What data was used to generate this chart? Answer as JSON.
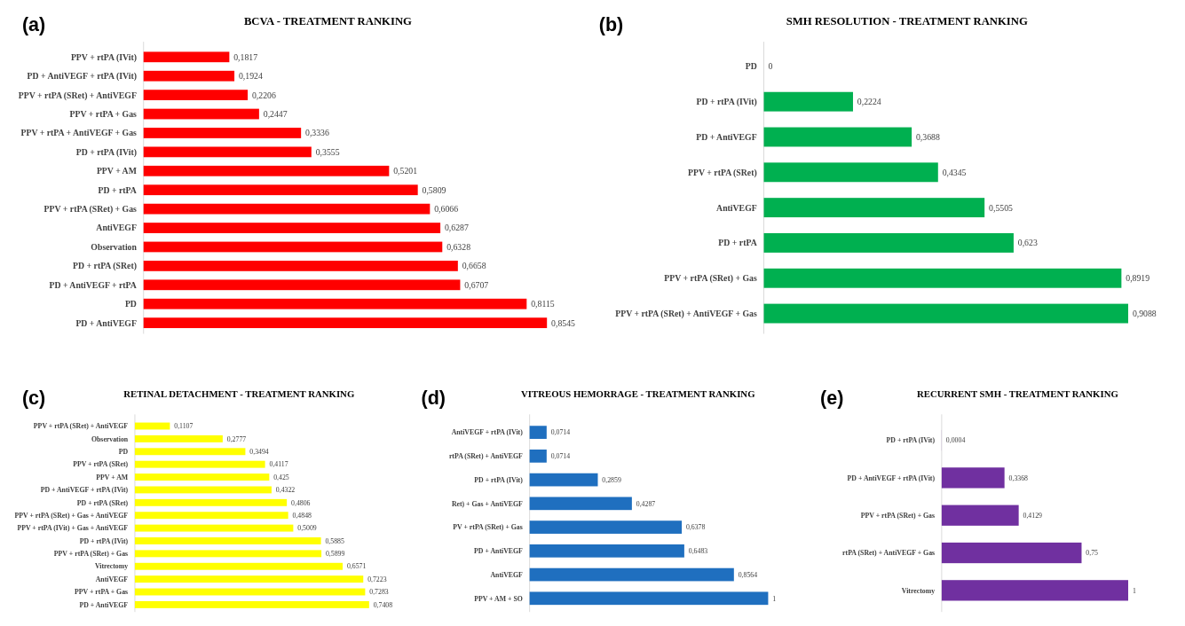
{
  "chart_data": [
    {
      "type": "bar",
      "orientation": "horizontal",
      "title": "BCVA - TREATMENT RANKING",
      "annotations": [
        "(a)"
      ],
      "categories": [
        "PPV + rtPA (IVit)",
        "PD + AntiVEGF + rtPA (IVit)",
        "PPV + rtPA (SRet) + AntiVEGF",
        "PPV + rtPA + Gas",
        "PPV + rtPA + AntiVEGF + Gas",
        "PD + rtPA (IVit)",
        "PPV + AM",
        "PD + rtPA",
        "PPV + rtPA (SRet) + Gas",
        "AntiVEGF",
        "Observation",
        "PD + rtPA (SRet)",
        "PD + AntiVEGF + rtPA",
        "PD",
        "PD + AntiVEGF"
      ],
      "values": [
        0.1817,
        0.1924,
        0.2206,
        0.2447,
        0.3336,
        0.3555,
        0.5201,
        0.5809,
        0.6066,
        0.6287,
        0.6328,
        0.6658,
        0.6707,
        0.8115,
        0.8545
      ],
      "value_labels": [
        "0,1817",
        "0,1924",
        "0,2206",
        "0,2447",
        "0,3336",
        "0,3555",
        "0,5201",
        "0,5809",
        "0,6066",
        "0,6287",
        "0,6328",
        "0,6658",
        "0,6707",
        "0,8115",
        "0,8545"
      ],
      "color": "#ff0000"
    },
    {
      "type": "bar",
      "orientation": "horizontal",
      "title": "SMH RESOLUTION - TREATMENT RANKING",
      "annotations": [
        "(b)"
      ],
      "categories": [
        "PD",
        "PD + rtPA (IVit)",
        "PD + AntiVEGF",
        "PPV + rtPA (SRet)",
        "AntiVEGF",
        "PD + rtPA",
        "PPV + rtPA (SRet) + Gas",
        "PPV + rtPA (SRet) + AntiVEGF + Gas"
      ],
      "values": [
        0,
        0.2224,
        0.3688,
        0.4345,
        0.5505,
        0.623,
        0.8919,
        0.9088
      ],
      "value_labels": [
        "0",
        "0,2224",
        "0,3688",
        "0,4345",
        "0,5505",
        "0,623",
        "0,8919",
        "0,9088"
      ],
      "color": "#00b050"
    },
    {
      "type": "bar",
      "orientation": "horizontal",
      "title": "RETINAL DETACHMENT - TREATMENT RANKING",
      "annotations": [
        "(c)"
      ],
      "categories": [
        "PPV + rtPA (SRet) + AntiVEGF",
        "Observation",
        "PD",
        "PPV + rtPA (SRet)",
        "PPV + AM",
        "PD + AntiVEGF + rtPA (IVit)",
        "PD + rtPA (SRet)",
        "PPV + rtPA (SRet) + Gas + AntiVEGF",
        "PPV + rtPA (IVit) + Gas + AntiVEGF",
        "PD + rtPA (IVit)",
        "PPV + rtPA (SRet) + Gas",
        "Vitrectomy",
        "AntiVEGF",
        "PPV + rtPA + Gas",
        "PD + AntiVEGF"
      ],
      "values": [
        0.1107,
        0.2777,
        0.3494,
        0.4117,
        0.425,
        0.4322,
        0.4806,
        0.4848,
        0.5009,
        0.5885,
        0.5899,
        0.6571,
        0.7223,
        0.7283,
        0.7408
      ],
      "value_labels": [
        "0,1107",
        "0,2777",
        "0,3494",
        "0,4117",
        "0,425",
        "0,4322",
        "0,4806",
        "0,4848",
        "0,5009",
        "0,5885",
        "0,5899",
        "0,6571",
        "0,7223",
        "0,7283",
        "0,7408"
      ],
      "color": "#ffff00"
    },
    {
      "type": "bar",
      "orientation": "horizontal",
      "title": "VITREOUS HEMORRAGE - TREATMENT RANKING",
      "annotations": [
        "(d)"
      ],
      "categories": [
        "AntiVEGF + rtPA (IVit)",
        "rtPA (SRet) + AntiVEGF",
        "PD + rtPA (IVit)",
        "Ret) + Gas + AntiVEGF",
        "PV + rtPA (SRet) + Gas",
        "PD + AntiVEGF",
        "AntiVEGF",
        "PPV + AM + SO"
      ],
      "values": [
        0.0714,
        0.0714,
        0.2859,
        0.4287,
        0.6378,
        0.6483,
        0.8564,
        1
      ],
      "value_labels": [
        "0,0714",
        "0,0714",
        "0,2859",
        "0,4287",
        "0,6378",
        "0,6483",
        "0,8564",
        "1"
      ],
      "color": "#1f6fbf"
    },
    {
      "type": "bar",
      "orientation": "horizontal",
      "title": "RECURRENT SMH - TREATMENT RANKING",
      "annotations": [
        "(e)"
      ],
      "categories": [
        "PD + rtPA (IVit)",
        "PD + AntiVEGF + rtPA (IVit)",
        "PPV + rtPA (SRet) + Gas",
        "rtPA (SRet) + AntiVEGF + Gas",
        "Vitrectomy"
      ],
      "values": [
        0.0004,
        0.3368,
        0.4129,
        0.75,
        1
      ],
      "value_labels": [
        "0,0004",
        "0,3368",
        "0,4129",
        "0,75",
        "1"
      ],
      "color": "#7030a0"
    }
  ]
}
